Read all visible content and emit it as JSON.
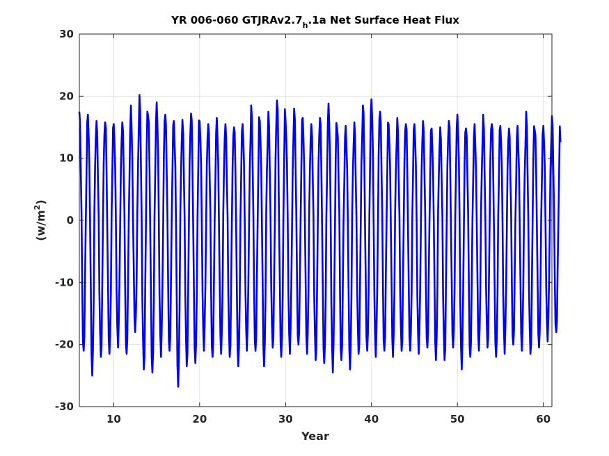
{
  "chart_data": {
    "type": "line",
    "title_parts": {
      "main": "YR 006-060 GTJRAv2.7",
      "subscript": "h",
      "suffix": ".1a Net Surface Heat Flux"
    },
    "xlabel": "Year",
    "ylabel_parts": {
      "main": "(w/m",
      "superscript": "2",
      "suffix": ")"
    },
    "xlim": [
      6,
      61
    ],
    "ylim": [
      -30,
      30
    ],
    "xticks": [
      10,
      20,
      30,
      40,
      50,
      60
    ],
    "yticks": [
      -30,
      -20,
      -10,
      0,
      10,
      20,
      30
    ],
    "grid": true,
    "series": [
      {
        "color": "#0000ff",
        "samples_per_year": 12,
        "annual_peaks": [
          17.5,
          17,
          16,
          15.8,
          15.5,
          15.8,
          18.5,
          20.2,
          16.8,
          19,
          17,
          16,
          16.2,
          17.2,
          16,
          15.5,
          16.5,
          15.5,
          15,
          15.5,
          18.5,
          16,
          17.5,
          19.3,
          16,
          18,
          16.5,
          15.5,
          16.5,
          18.8,
          14.8,
          15.2,
          15.8,
          18.5,
          19.5,
          17.5,
          15.5,
          16.5,
          15.5,
          15.5,
          16,
          14.8,
          15,
          16,
          17,
          14.8,
          15.5,
          17,
          15.5,
          15.2,
          14.8,
          15.2,
          17.5,
          14.5,
          15.2,
          16.8
        ],
        "annual_troughs": [
          -21,
          -25,
          -22,
          -21.5,
          -20.5,
          -21.5,
          -18,
          -24,
          -24.5,
          -22,
          -21,
          -26.8,
          -23.5,
          -23,
          -21,
          -22,
          -21.5,
          -22,
          -23.5,
          -21,
          -21,
          -23.5,
          -20.5,
          -22,
          -21.5,
          -20,
          -21.5,
          -22.5,
          -23,
          -24.5,
          -22.5,
          -24,
          -21.5,
          -21,
          -22,
          -21,
          -22,
          -21,
          -21,
          -21.5,
          -20.5,
          -22.5,
          -22.5,
          -20.5,
          -24,
          -22,
          -21,
          -20.5,
          -22,
          -21.5,
          -20,
          -21,
          -21.5,
          -20.5,
          -19.5,
          -18
        ]
      }
    ]
  }
}
